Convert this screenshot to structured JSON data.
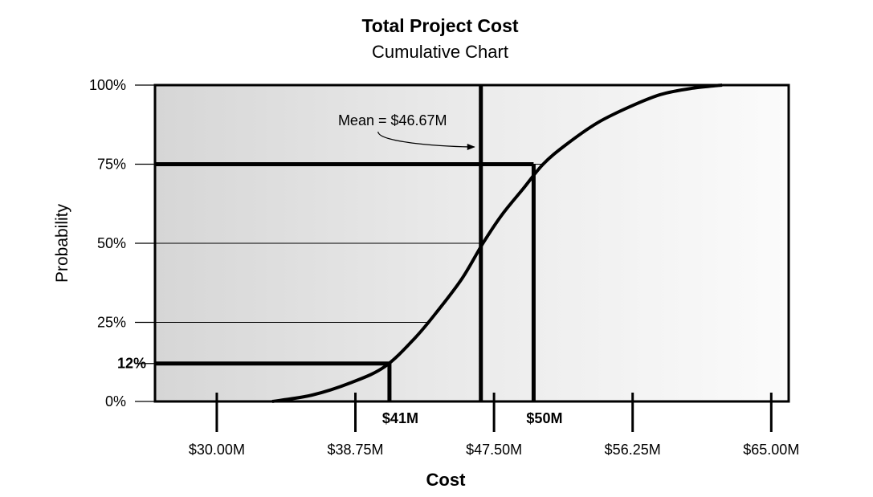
{
  "chart_data": {
    "type": "line",
    "title": "Total Project Cost",
    "subtitle": "Cumulative Chart",
    "xlabel": "Cost",
    "ylabel": "Probability",
    "x_ticks": [
      {
        "value": 30.0,
        "label": "$30.00M"
      },
      {
        "value": 38.75,
        "label": "$38.75M"
      },
      {
        "value": 47.5,
        "label": "$47.50M"
      },
      {
        "value": 56.25,
        "label": "$56.25M"
      },
      {
        "value": 65.0,
        "label": "$65.00M"
      }
    ],
    "y_ticks": [
      {
        "value": 0,
        "label": "0%"
      },
      {
        "value": 25,
        "label": "25%"
      },
      {
        "value": 50,
        "label": "50%"
      },
      {
        "value": 75,
        "label": "75%"
      },
      {
        "value": 100,
        "label": "100%"
      }
    ],
    "xlim": [
      26.1,
      66.1
    ],
    "ylim": [
      0,
      100
    ],
    "series": [
      {
        "values": [
          {
            "x": 33.5,
            "y": 0
          },
          {
            "x": 36.0,
            "y": 2
          },
          {
            "x": 38.5,
            "y": 6
          },
          {
            "x": 40.6,
            "y": 11
          },
          {
            "x": 42.5,
            "y": 20
          },
          {
            "x": 44.0,
            "y": 29
          },
          {
            "x": 45.5,
            "y": 39
          },
          {
            "x": 46.8,
            "y": 50
          },
          {
            "x": 48.0,
            "y": 59
          },
          {
            "x": 49.3,
            "y": 67
          },
          {
            "x": 50.6,
            "y": 75
          },
          {
            "x": 52.0,
            "y": 81
          },
          {
            "x": 54.0,
            "y": 88
          },
          {
            "x": 56.0,
            "y": 93
          },
          {
            "x": 58.0,
            "y": 97
          },
          {
            "x": 60.0,
            "y": 99
          },
          {
            "x": 61.9,
            "y": 100
          }
        ]
      }
    ],
    "reference_lines": [
      {
        "x": 40.9,
        "y": 12,
        "x_label": "$41M",
        "y_label": "12%"
      },
      {
        "x": 50.0,
        "y": 75,
        "x_label": "$50M"
      },
      {
        "x": 46.67
      }
    ],
    "annotation": {
      "text": "Mean = $46.67M",
      "points_to_x": 46.67
    },
    "grid": false
  }
}
